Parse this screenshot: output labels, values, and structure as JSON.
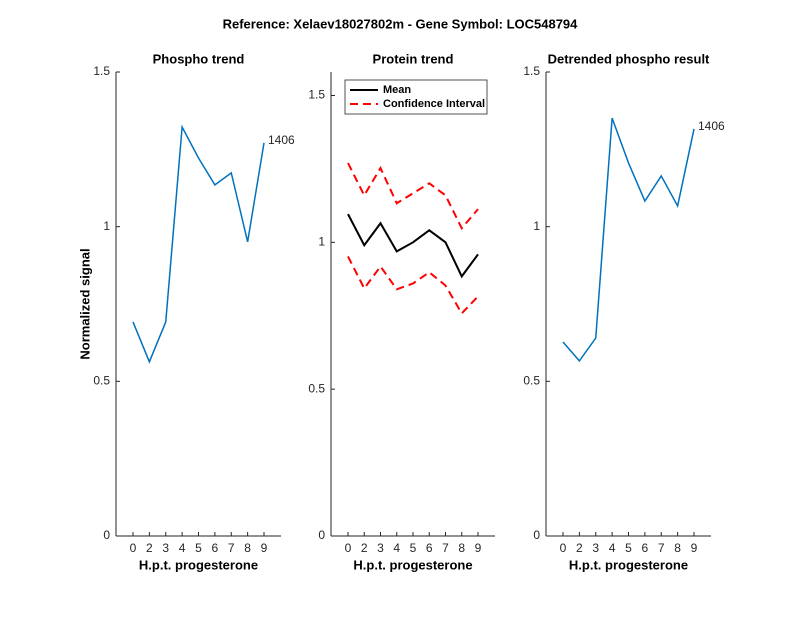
{
  "title": "Reference:  Xelaev18027802m - Gene Symbol:  LOC548794",
  "chart_data": [
    {
      "type": "line",
      "title": "Phospho trend",
      "xlabel": "H.p.t. progesterone",
      "ylabel": "Normalized signal",
      "categories": [
        "0",
        "2",
        "3",
        "4",
        "5",
        "6",
        "7",
        "8",
        "9"
      ],
      "series": [
        {
          "color": "#0072bd",
          "values": [
            0.692,
            0.563,
            0.692,
            1.322,
            1.222,
            1.135,
            1.174,
            0.951,
            1.271
          ]
        }
      ],
      "annotation": "1406",
      "ylim": [
        0,
        1.5
      ],
      "yticks": [
        0,
        0.5,
        1,
        1.5
      ]
    },
    {
      "type": "line",
      "title": "Protein trend",
      "xlabel": "H.p.t. progesterone",
      "categories": [
        "0",
        "2",
        "3",
        "4",
        "5",
        "6",
        "7",
        "8",
        "9"
      ],
      "series": [
        {
          "name": "Mean",
          "color": "#000000",
          "values": [
            1.096,
            0.99,
            1.065,
            0.969,
            1.0,
            1.041,
            1.0,
            0.884,
            0.959
          ]
        },
        {
          "name": "Confidence Interval",
          "color": "#ff0000",
          "dashed": true,
          "values": [
            1.27,
            1.16,
            1.253,
            1.133,
            1.167,
            1.201,
            1.16,
            1.048,
            1.113
          ]
        },
        {
          "color": "#ff0000",
          "dashed": true,
          "values": [
            0.952,
            0.843,
            0.918,
            0.84,
            0.86,
            0.898,
            0.853,
            0.758,
            0.816
          ]
        }
      ],
      "legend": "northwest",
      "ylim": [
        0,
        1.58
      ],
      "yticks": [
        0,
        0.5,
        1,
        1.5
      ]
    },
    {
      "type": "line",
      "title": "Detrended phospho result",
      "xlabel": "H.p.t. progesterone",
      "categories": [
        "0",
        "2",
        "3",
        "4",
        "5",
        "6",
        "7",
        "8",
        "9"
      ],
      "series": [
        {
          "color": "#0072bd",
          "values": [
            0.627,
            0.566,
            0.64,
            1.351,
            1.206,
            1.083,
            1.164,
            1.067,
            1.316
          ]
        }
      ],
      "annotation": "1406",
      "ylim": [
        0,
        1.5
      ],
      "yticks": [
        0,
        0.5,
        1,
        1.5
      ]
    }
  ]
}
